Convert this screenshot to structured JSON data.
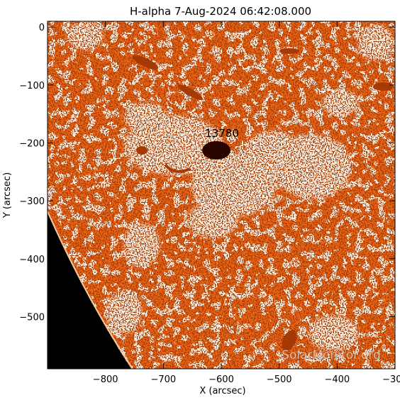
{
  "title": "H-alpha   7-Aug-2024 06:42:08.000",
  "active_region": "13780",
  "watermark": "SolarMonitor.org",
  "axes": {
    "xlabel": "X (arcsec)",
    "ylabel": "Y (arcsec)",
    "xlim": [
      -900,
      -300
    ],
    "ylim": [
      -590,
      10
    ],
    "xticks": [
      {
        "value": -800,
        "label": "−800"
      },
      {
        "value": -700,
        "label": "−700"
      },
      {
        "value": -600,
        "label": "−600"
      },
      {
        "value": -500,
        "label": "−500"
      },
      {
        "value": -400,
        "label": "−400"
      },
      {
        "value": -300,
        "label": "−300"
      }
    ],
    "yticks": [
      {
        "value": 0,
        "label": "0"
      },
      {
        "value": -100,
        "label": "−100"
      },
      {
        "value": -200,
        "label": "−200"
      },
      {
        "value": -300,
        "label": "−300"
      },
      {
        "value": -400,
        "label": "−400"
      },
      {
        "value": -500,
        "label": "−500"
      }
    ]
  },
  "colors": {
    "orange": "#e8651a",
    "dark_orange": "#a63a06",
    "light": "#fff4ea",
    "off_limb": "#000000",
    "dark_spot": "#2a0500"
  }
}
